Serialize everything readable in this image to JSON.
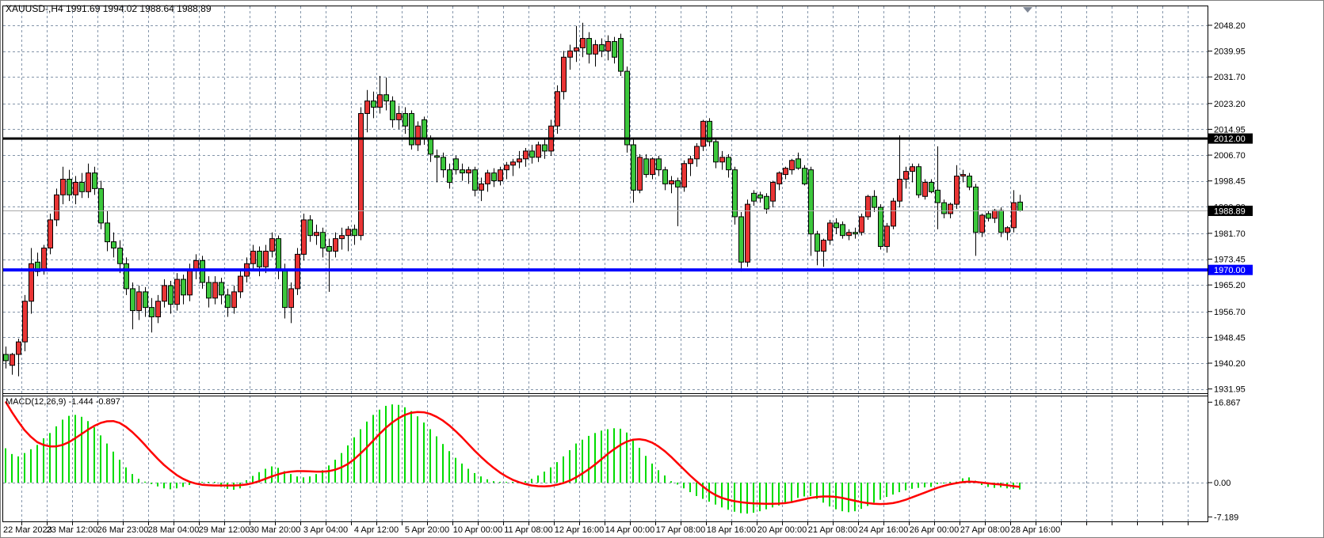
{
  "header": {
    "line": "XAUUSD-,H4 1991.69 1994.02 1988.64 1988.89",
    "symbol": "XAUUSD-",
    "period": "H4",
    "open": "1991.69",
    "high": "1994.02",
    "low": "1988.64",
    "close": "1988.89"
  },
  "indicator": {
    "label": "MACD(12,26,9) -1.444 -0.897",
    "name": "MACD",
    "params": "12,26,9",
    "main_value": "-1.444",
    "signal_value": "-0.897"
  },
  "price_axis": {
    "labels": [
      "2048.20",
      "2039.95",
      "2031.70",
      "2023.20",
      "2014.95",
      "2006.70",
      "1998.45",
      "1990.20",
      "1981.70",
      "1973.45",
      "1965.20",
      "1956.70",
      "1948.45",
      "1940.20",
      "1931.95"
    ],
    "values": [
      2048.2,
      2039.95,
      2031.7,
      2023.2,
      2014.95,
      2006.7,
      1998.45,
      1990.2,
      1981.7,
      1973.45,
      1965.2,
      1956.7,
      1948.45,
      1940.2,
      1931.95
    ],
    "bid_box": "1988.89",
    "black_line_box": "2012.00",
    "blue_line_box": "1970.00"
  },
  "macd_axis": {
    "labels": [
      "16.867",
      "0.00",
      "-7.189"
    ],
    "values": [
      16.867,
      0.0,
      -7.189
    ]
  },
  "time_axis": {
    "labels": [
      "22 Mar 2023",
      "23 Mar 12:00",
      "26 Mar 23:00",
      "28 Mar 04:00",
      "29 Mar 12:00",
      "30 Mar 20:00",
      "3 Apr 04:00",
      "4 Apr 12:00",
      "5 Apr 20:00",
      "10 Apr 00:00",
      "11 Apr 08:00",
      "12 Apr 16:00",
      "14 Apr 00:00",
      "17 Apr 08:00",
      "18 Apr 16:00",
      "20 Apr 00:00",
      "21 Apr 08:00",
      "24 Apr 16:00",
      "26 Apr 00:00",
      "27 Apr 08:00",
      "28 Apr 16:00"
    ]
  },
  "colors": {
    "bull_candle": "#e93535",
    "bear_candle": "#3cc73c",
    "candle_border": "#000000",
    "wick": "#000000",
    "macd_histogram": "#00dc00",
    "macd_signal": "#fe0000",
    "hline_black": "#000000",
    "hline_blue": "#0000fe",
    "bid_line": "#aaaaaa",
    "grid": "#8495aa",
    "axis_text": "#000000",
    "shift_triangle": "#7f8795",
    "background": "#ffffff"
  },
  "chart_data": {
    "type": "candlestick+macd",
    "symbol": "XAUUSD",
    "timeframe": "H4",
    "title": "XAUUSD-,H4",
    "legend": [
      "MACD(12,26,9) histogram",
      "MACD signal"
    ],
    "price_range_visible": [
      1930.6,
      2054.3
    ],
    "macd_range_visible": [
      -8.1,
      18.2
    ],
    "grid": "dashed",
    "horizontal_lines": [
      {
        "value": 2012.0,
        "style": "solid-black-thick"
      },
      {
        "value": 1970.0,
        "style": "solid-blue-thick"
      },
      {
        "value": 1988.89,
        "style": "bid-price-thin"
      }
    ],
    "last_bar": {
      "open": 1991.69,
      "high": 1994.02,
      "low": 1988.64,
      "close": 1988.89
    },
    "candles_format": [
      "open",
      "high",
      "low",
      "close"
    ],
    "candles": [
      [
        1943,
        1945.5,
        1938.5,
        1941
      ],
      [
        1939.5,
        1943.5,
        1936.5,
        1943
      ],
      [
        1943,
        1948,
        1936,
        1947
      ],
      [
        1947,
        1962,
        1944,
        1960
      ],
      [
        1960,
        1977,
        1956,
        1972
      ],
      [
        1972.5,
        1975.5,
        1968,
        1969.5
      ],
      [
        1970,
        1978,
        1968.5,
        1977
      ],
      [
        1977,
        1988,
        1975,
        1986
      ],
      [
        1986,
        1996,
        1984,
        1994
      ],
      [
        1994,
        2003,
        1991,
        1999
      ],
      [
        1999,
        2002,
        1992,
        1994
      ],
      [
        1994,
        2000,
        1991,
        1998
      ],
      [
        1998,
        2001,
        1993,
        1995
      ],
      [
        1995,
        2004,
        1993,
        2001
      ],
      [
        2001,
        2003,
        1994,
        1996
      ],
      [
        1996,
        1998.5,
        1983,
        1985
      ],
      [
        1985,
        1989,
        1976,
        1979
      ],
      [
        1979,
        1982,
        1974,
        1977
      ],
      [
        1977,
        1979.5,
        1969,
        1972
      ],
      [
        1972,
        1974,
        1962,
        1964
      ],
      [
        1964,
        1966,
        1951,
        1957
      ],
      [
        1957,
        1965,
        1954,
        1963
      ],
      [
        1963,
        1964.5,
        1955,
        1958
      ],
      [
        1958,
        1961,
        1950,
        1955
      ],
      [
        1955,
        1962,
        1953,
        1960
      ],
      [
        1960,
        1967,
        1958,
        1965
      ],
      [
        1965,
        1966.5,
        1956,
        1959
      ],
      [
        1959,
        1969,
        1957,
        1967
      ],
      [
        1967,
        1968.5,
        1959,
        1962
      ],
      [
        1962,
        1972,
        1960,
        1970
      ],
      [
        1970,
        1975,
        1967,
        1973
      ],
      [
        1973,
        1974.5,
        1964,
        1966
      ],
      [
        1966,
        1968,
        1958,
        1961
      ],
      [
        1961,
        1968,
        1959,
        1966
      ],
      [
        1966,
        1967.5,
        1959,
        1962
      ],
      [
        1962,
        1964,
        1955,
        1958
      ],
      [
        1958,
        1965,
        1956,
        1963
      ],
      [
        1963,
        1970,
        1961,
        1968
      ],
      [
        1968,
        1974,
        1966,
        1972
      ],
      [
        1972,
        1978,
        1970,
        1976
      ],
      [
        1976,
        1977.5,
        1968,
        1971
      ],
      [
        1971,
        1978,
        1969,
        1976
      ],
      [
        1976,
        1982,
        1974,
        1980
      ],
      [
        1980,
        1981,
        1967,
        1970
      ],
      [
        1970,
        1972,
        1954.5,
        1958
      ],
      [
        1958,
        1966,
        1953,
        1964
      ],
      [
        1964,
        1977,
        1962,
        1975
      ],
      [
        1975,
        1988,
        1973,
        1986
      ],
      [
        1986,
        1987.5,
        1979,
        1981
      ],
      [
        1981,
        1984.5,
        1978,
        1982
      ],
      [
        1982,
        1983.5,
        1974,
        1977
      ],
      [
        1977.5,
        1980,
        1963,
        1976
      ],
      [
        1976,
        1982,
        1974,
        1980
      ],
      [
        1980,
        1983.5,
        1976.5,
        1981
      ],
      [
        1981,
        1984,
        1976,
        1983
      ],
      [
        1983,
        1984.5,
        1978,
        1981
      ],
      [
        1981,
        2022,
        1979.5,
        2020
      ],
      [
        2020,
        2027.5,
        2014,
        2024
      ],
      [
        2024,
        2027,
        2018.5,
        2022
      ],
      [
        2022,
        2032,
        2020,
        2026
      ],
      [
        2026,
        2031.5,
        2021,
        2024
      ],
      [
        2024,
        2025.5,
        2015.5,
        2018
      ],
      [
        2018,
        2022.5,
        2015,
        2020
      ],
      [
        2020,
        2022,
        2013.5,
        2016
      ],
      [
        2020,
        2021,
        2008.5,
        2010
      ],
      [
        2010,
        2017.5,
        2008,
        2016
      ],
      [
        2018,
        2019,
        2010,
        2012
      ],
      [
        2012,
        2013,
        2004.5,
        2007
      ],
      [
        2006.5,
        2008.5,
        1998,
        2006
      ],
      [
        2006,
        2007.5,
        1999.5,
        2002
      ],
      [
        2002,
        2004,
        1996,
        1998
      ],
      [
        2005.5,
        2006.5,
        2000.5,
        2002
      ],
      [
        2002,
        2004,
        1998.5,
        2001
      ],
      [
        2001,
        2003,
        1997.5,
        2002
      ],
      [
        2002,
        2003,
        1993.5,
        1995.5
      ],
      [
        1995.5,
        1999.5,
        1992,
        1997.5
      ],
      [
        1997.5,
        2002,
        1995,
        2001
      ],
      [
        2001,
        2002.5,
        1996.5,
        1998.5
      ],
      [
        1998.5,
        2003,
        1997,
        2002
      ],
      [
        2002,
        2004.5,
        1999,
        2003.5
      ],
      [
        2003.5,
        2005.5,
        2000,
        2004.5
      ],
      [
        2004.5,
        2008,
        2002.5,
        2005.5
      ],
      [
        2005.5,
        2009,
        2003,
        2008
      ],
      [
        2008,
        2010,
        2004,
        2006
      ],
      [
        2006,
        2011,
        2004.5,
        2010
      ],
      [
        2010,
        2012,
        2005.5,
        2008
      ],
      [
        2008,
        2018,
        2006.5,
        2016
      ],
      [
        2016,
        2029,
        2013.5,
        2027
      ],
      [
        2027,
        2040,
        2024.5,
        2038
      ],
      [
        2038,
        2042,
        2034,
        2040
      ],
      [
        2040,
        2048,
        2036.5,
        2041
      ],
      [
        2041,
        2049,
        2038,
        2044
      ],
      [
        2044,
        2046,
        2036,
        2039
      ],
      [
        2039,
        2043.5,
        2035,
        2042
      ],
      [
        2042,
        2044,
        2038,
        2040
      ],
      [
        2040,
        2045,
        2037,
        2043
      ],
      [
        2043,
        2044.5,
        2036,
        2038
      ],
      [
        2044,
        2045.5,
        2032,
        2033.5
      ],
      [
        2033.5,
        2035,
        2007.5,
        2010
      ],
      [
        2010,
        2012,
        1991.5,
        1995.5
      ],
      [
        1995.5,
        2007,
        1994.5,
        2006
      ],
      [
        2005.5,
        2007,
        1999.5,
        2000.5
      ],
      [
        2000.5,
        2006,
        1999,
        2005.5
      ],
      [
        2005.5,
        2006.5,
        2000,
        2002
      ],
      [
        2002,
        2003,
        1995.5,
        1997.5
      ],
      [
        1997.5,
        2000,
        1994.5,
        1998.5
      ],
      [
        1998.5,
        1999.5,
        1984,
        1996.5
      ],
      [
        1996.5,
        2005,
        1995,
        2004
      ],
      [
        2004,
        2006.5,
        2000,
        2005.5
      ],
      [
        2005.5,
        2010.5,
        2003,
        2009.5
      ],
      [
        2009.5,
        2018,
        2008,
        2017.5
      ],
      [
        2017.5,
        2018.5,
        2009.5,
        2011
      ],
      [
        2011,
        2012,
        2002.5,
        2004.5
      ],
      [
        2004.5,
        2008,
        2002,
        2006
      ],
      [
        2006,
        2007,
        1999.5,
        2002
      ],
      [
        2002,
        2003,
        1984.5,
        1987
      ],
      [
        1987,
        1988.5,
        1969.5,
        1972.5
      ],
      [
        1972.5,
        1992.5,
        1971,
        1991
      ],
      [
        1994.5,
        1995.5,
        1990.5,
        1992
      ],
      [
        1994,
        1995,
        1991.5,
        1993
      ],
      [
        1993.5,
        1994.5,
        1988,
        1989.5
      ],
      [
        1992,
        1998.5,
        1990,
        1998
      ],
      [
        1997.5,
        2001.5,
        1995.5,
        2001
      ],
      [
        2000.5,
        2003,
        1999,
        2002.5
      ],
      [
        2002,
        2005.5,
        2000.5,
        2005
      ],
      [
        2005.5,
        2007.5,
        2002,
        2002.5
      ],
      [
        2002.5,
        2003.5,
        1997,
        1997.5
      ],
      [
        2002,
        2003,
        1974.5,
        1981.5
      ],
      [
        1981.5,
        1982.5,
        1971.5,
        1976
      ],
      [
        1976,
        1980,
        1971,
        1979.5
      ],
      [
        1979.5,
        1986,
        1978,
        1985
      ],
      [
        1985,
        1986.5,
        1981.5,
        1983.5
      ],
      [
        1984.5,
        1985.5,
        1980,
        1981
      ],
      [
        1981,
        1983,
        1979.5,
        1982
      ],
      [
        1982,
        1983.5,
        1980,
        1981.5
      ],
      [
        1982,
        1988,
        1981,
        1987
      ],
      [
        1987,
        1994,
        1986,
        1993.5
      ],
      [
        1993.5,
        1995.5,
        1988.5,
        1990
      ],
      [
        1990,
        1991,
        1976.5,
        1977.5
      ],
      [
        1977.5,
        1985,
        1975.5,
        1984
      ],
      [
        1984,
        1993,
        1983,
        1992
      ],
      [
        1992,
        2013,
        1990,
        1999
      ],
      [
        1999,
        2003,
        1996,
        2001.5
      ],
      [
        2001.5,
        2004,
        1998,
        2003
      ],
      [
        2003,
        2004,
        1993,
        1994
      ],
      [
        1993.5,
        1999,
        1992.5,
        1998
      ],
      [
        1998,
        1999,
        1994.5,
        1995
      ],
      [
        1995.5,
        2009.5,
        1983,
        1991.5
      ],
      [
        1991.5,
        1992.5,
        1986.5,
        1988
      ],
      [
        1988,
        1991.5,
        1986.5,
        1991
      ],
      [
        1991,
        2003.5,
        1989.5,
        2000
      ],
      [
        2000,
        2002,
        1998,
        2000.5
      ],
      [
        2000,
        2001,
        1995.5,
        1996.5
      ],
      [
        1996.5,
        1997.5,
        1974.5,
        1982
      ],
      [
        1982,
        1988,
        1980.5,
        1987.5
      ],
      [
        1988,
        1989,
        1985.5,
        1986.5
      ],
      [
        1986.5,
        1989.5,
        1985,
        1989
      ],
      [
        1989,
        1990,
        1980.5,
        1982
      ],
      [
        1982,
        1984,
        1979.5,
        1983.5
      ],
      [
        1983.5,
        1995.5,
        1982,
        1991.5
      ],
      [
        1991.69,
        1994.02,
        1988.64,
        1988.89
      ]
    ],
    "macd_histogram": [
      7.2,
      6.0,
      5.5,
      6.2,
      7.0,
      7.9,
      9.3,
      10.4,
      11.8,
      13.2,
      14.0,
      14.2,
      13.8,
      12.9,
      11.6,
      9.9,
      8.2,
      6.5,
      4.8,
      3.2,
      1.8,
      0.8,
      0.2,
      -0.3,
      -0.8,
      -1.2,
      -1.4,
      -1.2,
      -0.9,
      -0.5,
      -0.2,
      0.0,
      0.1,
      0.0,
      -0.9,
      -1.3,
      -1.5,
      -1.2,
      0.5,
      1.4,
      2.2,
      2.9,
      3.4,
      3.1,
      2.4,
      1.8,
      1.3,
      1.1,
      1.3,
      1.8,
      2.6,
      3.6,
      4.8,
      6.2,
      7.8,
      9.5,
      11.2,
      12.8,
      14.2,
      15.3,
      16.1,
      16.4,
      16.3,
      15.8,
      15.0,
      13.9,
      12.6,
      11.2,
      9.7,
      8.1,
      6.6,
      5.2,
      4.0,
      2.9,
      2.0,
      1.3,
      0.7,
      0.3,
      0.1,
      0.0,
      0.0,
      0.1,
      0.3,
      0.8,
      1.5,
      2.3,
      3.2,
      4.3,
      5.5,
      6.8,
      8.2,
      9.0,
      9.8,
      10.4,
      10.9,
      11.2,
      11.4,
      11.3,
      10.5,
      9.0,
      7.3,
      5.6,
      4.0,
      2.6,
      1.5,
      0.3,
      -0.4,
      -1.2,
      -2.0,
      -2.8,
      -3.4,
      -4.0,
      -4.6,
      -5.2,
      -5.7,
      -6.1,
      -6.4,
      -6.5,
      -6.3,
      -6.0,
      -5.6,
      -5.2,
      -4.8,
      -4.4,
      -4.1,
      -3.2,
      -2.9,
      -2.8,
      -3.4,
      -4.2,
      -5.0,
      -5.6,
      -6.0,
      -6.2,
      -6.0,
      -5.5,
      -4.9,
      -4.2,
      -3.6,
      -3.0,
      -2.5,
      -2.0,
      -1.6,
      -1.3,
      -1.1,
      -1.0,
      -0.9,
      -0.3,
      -0.1,
      0.0,
      0.2,
      0.9,
      1.1,
      0.4,
      -0.5,
      -0.9,
      -1.1,
      -1.0,
      -1.2,
      -1.3,
      -1.444
    ],
    "macd_signal": [
      17.0,
      14.8,
      12.8,
      11.0,
      9.6,
      8.5,
      7.9,
      7.6,
      7.6,
      7.9,
      8.5,
      9.3,
      10.2,
      11.1,
      11.9,
      12.5,
      12.85,
      12.9,
      12.5,
      11.7,
      10.6,
      9.3,
      7.9,
      6.4,
      5.0,
      3.7,
      2.6,
      1.6,
      0.8,
      0.2,
      -0.2,
      -0.45,
      -0.55,
      -0.6,
      -0.6,
      -0.6,
      -0.6,
      -0.55,
      -0.4,
      -0.1,
      0.3,
      0.8,
      1.3,
      1.75,
      2.1,
      2.3,
      2.4,
      2.4,
      2.35,
      2.3,
      2.3,
      2.4,
      2.7,
      3.2,
      3.9,
      4.9,
      6.1,
      7.4,
      8.8,
      10.2,
      11.5,
      12.6,
      13.5,
      14.2,
      14.65,
      14.8,
      14.75,
      14.4,
      13.8,
      13.0,
      12.0,
      10.8,
      9.5,
      8.1,
      6.7,
      5.4,
      4.2,
      3.1,
      2.1,
      1.3,
      0.6,
      0.1,
      -0.3,
      -0.6,
      -0.75,
      -0.8,
      -0.7,
      -0.45,
      -0.1,
      0.4,
      1.1,
      1.9,
      2.8,
      3.8,
      4.9,
      6.0,
      7.0,
      7.9,
      8.6,
      9.0,
      9.1,
      8.9,
      8.4,
      7.6,
      6.6,
      5.4,
      4.1,
      2.8,
      1.5,
      0.3,
      -0.8,
      -1.8,
      -2.6,
      -3.2,
      -3.6,
      -3.9,
      -4.1,
      -4.25,
      -4.35,
      -4.4,
      -4.45,
      -4.45,
      -4.4,
      -4.3,
      -4.1,
      -3.8,
      -3.5,
      -3.2,
      -3.0,
      -2.9,
      -2.9,
      -3.0,
      -3.2,
      -3.5,
      -3.8,
      -4.1,
      -4.3,
      -4.45,
      -4.5,
      -4.45,
      -4.3,
      -4.0,
      -3.6,
      -3.1,
      -2.6,
      -2.1,
      -1.6,
      -1.1,
      -0.7,
      -0.35,
      -0.1,
      0.1,
      0.2,
      0.15,
      0.0,
      -0.15,
      -0.3,
      -0.4,
      -0.55,
      -0.75,
      -0.897
    ]
  }
}
